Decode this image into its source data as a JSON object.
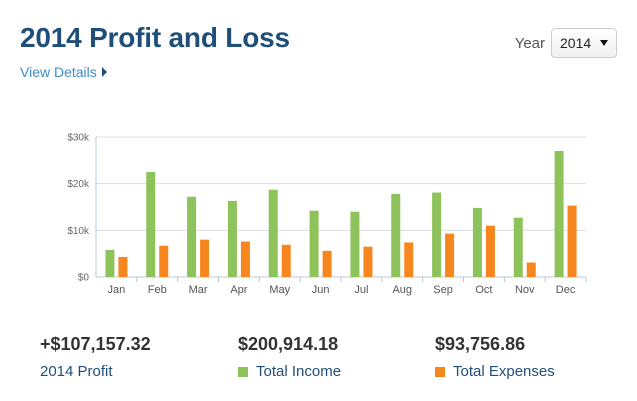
{
  "header": {
    "title": "2014 Profit and Loss",
    "details_link": "View Details",
    "year_label": "Year",
    "year_selected": "2014"
  },
  "summary": {
    "profit_value": "+$107,157.32",
    "profit_label": "2014 Profit",
    "income_value": "$200,914.18",
    "income_label": "Total Income",
    "expenses_value": "$93,756.86",
    "expenses_label": "Total Expenses"
  },
  "colors": {
    "income": "#8ec25a",
    "expenses": "#f7861e",
    "title": "#1f4e79",
    "link": "#3c8ec8"
  },
  "chart_data": {
    "type": "bar",
    "categories": [
      "Jan",
      "Feb",
      "Mar",
      "Apr",
      "May",
      "Jun",
      "Jul",
      "Aug",
      "Sep",
      "Oct",
      "Nov",
      "Dec"
    ],
    "series": [
      {
        "name": "Total Income",
        "values": [
          5800,
          22500,
          17200,
          16300,
          18700,
          14200,
          14000,
          17800,
          18100,
          14800,
          12700,
          27000
        ]
      },
      {
        "name": "Total Expenses",
        "values": [
          4300,
          6700,
          8000,
          7600,
          6900,
          5600,
          6500,
          7400,
          9300,
          11000,
          3100,
          15300
        ]
      }
    ],
    "y_ticks": [
      "$0",
      "$10k",
      "$20k",
      "$30k"
    ],
    "ylim": [
      0,
      30000
    ],
    "grid": true,
    "legend": "below"
  }
}
